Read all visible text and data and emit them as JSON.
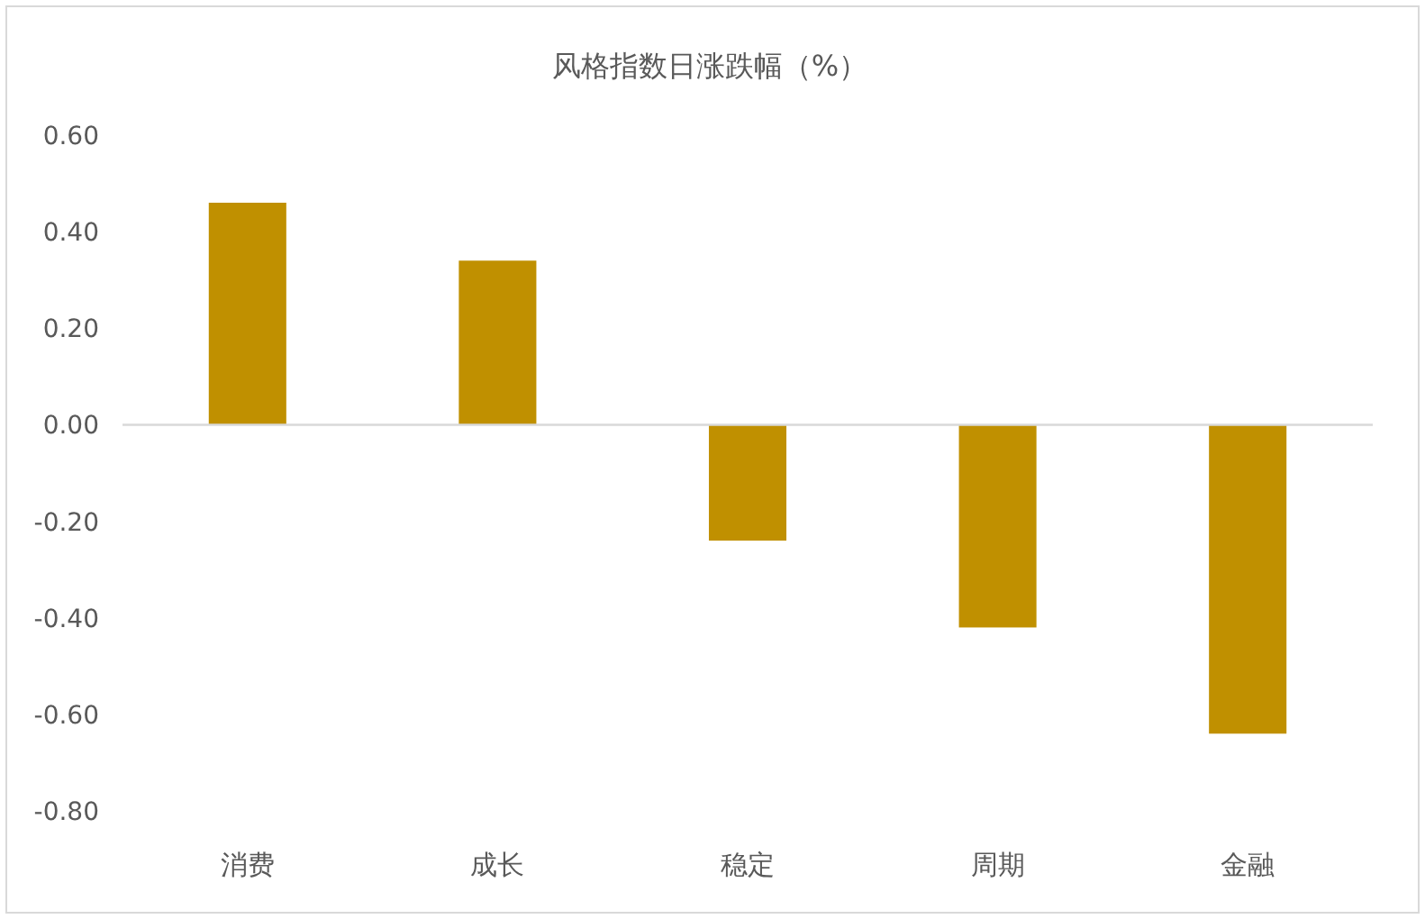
{
  "chart_data": {
    "type": "bar",
    "title": "风格指数日涨跌幅（%）",
    "categories": [
      "消费",
      "成长",
      "稳定",
      "周期",
      "金融"
    ],
    "values": [
      0.46,
      0.34,
      -0.24,
      -0.42,
      -0.64
    ],
    "color": "#c09000",
    "ylim": [
      -0.8,
      0.6
    ],
    "yticks": [
      {
        "value": 0.6,
        "label": "0.60"
      },
      {
        "value": 0.4,
        "label": "0.40"
      },
      {
        "value": 0.2,
        "label": "0.20"
      },
      {
        "value": 0,
        "label": "0.00"
      },
      {
        "value": -0.2,
        "label": "-0.20"
      },
      {
        "value": -0.4,
        "label": "-0.40"
      },
      {
        "value": -0.6,
        "label": "-0.60"
      },
      {
        "value": -0.8,
        "label": "-0.80"
      }
    ]
  }
}
